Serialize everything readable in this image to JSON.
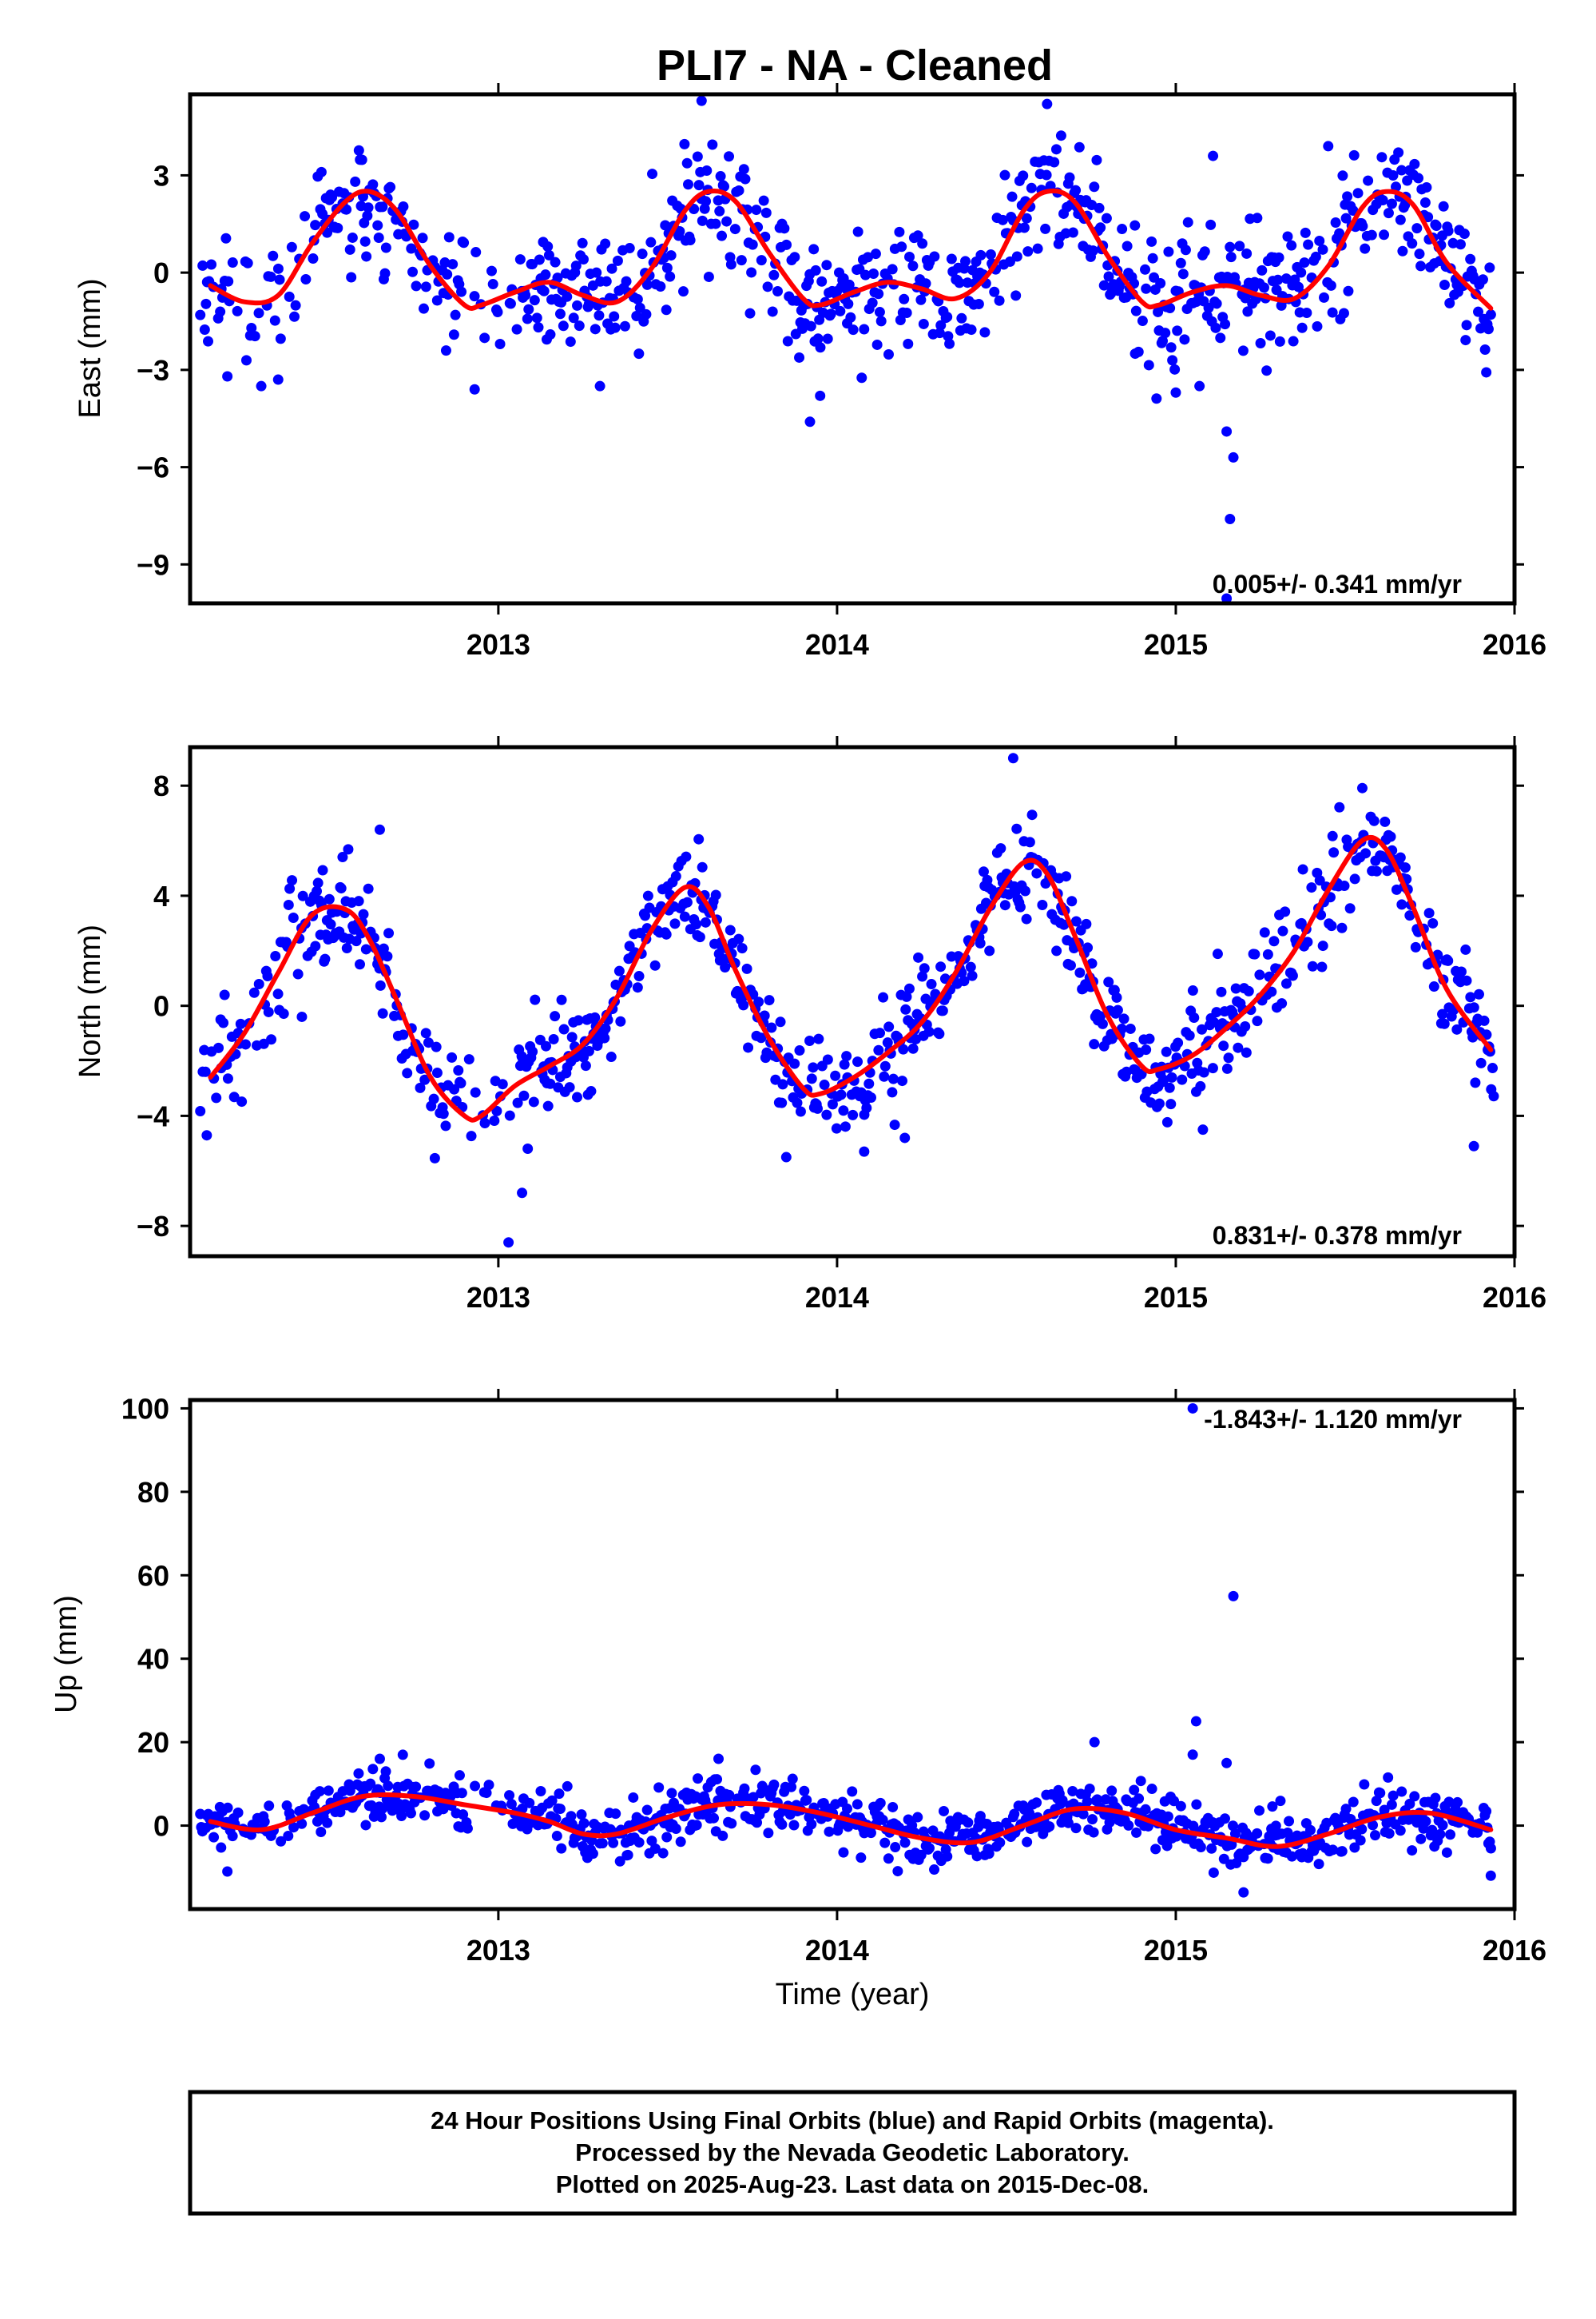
{
  "chart_data": {
    "type": "scatter",
    "title": "PLI7  - NA - Cleaned",
    "xlabel": "Time (year)",
    "xlim": [
      2012.09,
      2016.0
    ],
    "xticks": [
      "2013",
      "2014",
      "2015",
      "2016"
    ],
    "colors": {
      "points": "#0000ff",
      "model": "#ff0000"
    },
    "panels": [
      {
        "name": "east",
        "ylabel": "East (mm)",
        "ylim": [
          -10.2,
          5.5
        ],
        "yticks": [
          "3",
          "0",
          "−3",
          "−6",
          "−9"
        ],
        "rate_label": "0.005+/- 0.341 mm/yr",
        "model": {
          "x": [
            2012.15,
            2012.25,
            2012.35,
            2012.45,
            2012.55,
            2012.62,
            2012.7,
            2012.8,
            2012.9,
            2012.95,
            2013.05,
            2013.15,
            2013.25,
            2013.35,
            2013.45,
            2013.55,
            2013.62,
            2013.7,
            2013.8,
            2013.9,
            2013.95,
            2014.05,
            2014.15,
            2014.25,
            2014.35,
            2014.45,
            2014.55,
            2014.62,
            2014.7,
            2014.8,
            2014.9,
            2014.95,
            2015.05,
            2015.15,
            2015.25,
            2015.35,
            2015.45,
            2015.55,
            2015.62,
            2015.7,
            2015.8,
            2015.93
          ],
          "y": [
            -0.4,
            -0.9,
            -0.7,
            0.9,
            2.2,
            2.5,
            1.9,
            0.2,
            -1.0,
            -1.0,
            -0.6,
            -0.3,
            -0.7,
            -0.9,
            0.1,
            1.9,
            2.5,
            2.2,
            0.6,
            -0.8,
            -1.0,
            -0.6,
            -0.3,
            -0.5,
            -0.8,
            0.0,
            1.9,
            2.5,
            2.2,
            0.5,
            -0.9,
            -1.0,
            -0.6,
            -0.4,
            -0.7,
            -0.8,
            0.2,
            2.0,
            2.5,
            2.1,
            0.3,
            -1.1
          ]
        },
        "outliers": [
          [
            2013.6,
            5.3
          ],
          [
            2014.62,
            5.2
          ],
          [
            2014.88,
            -2.5
          ],
          [
            2015.15,
            -4.9
          ],
          [
            2015.17,
            -5.7
          ],
          [
            2015.16,
            -7.6
          ],
          [
            2015.15,
            -10.1
          ],
          [
            2013.92,
            -4.6
          ],
          [
            2013.95,
            -3.8
          ],
          [
            2012.93,
            -3.6
          ],
          [
            2012.2,
            -3.2
          ],
          [
            2012.3,
            -3.5
          ],
          [
            2012.35,
            -3.3
          ],
          [
            2013.3,
            -3.5
          ],
          [
            2015.07,
            -3.5
          ],
          [
            2015.0,
            -3.7
          ],
          [
            2015.11,
            3.6
          ],
          [
            2015.45,
            3.9
          ]
        ]
      },
      {
        "name": "north",
        "ylabel": "North (mm)",
        "ylim": [
          -9.1,
          9.4
        ],
        "yticks": [
          "8",
          "4",
          "0",
          "−4",
          "−8"
        ],
        "rate_label": "0.831+/- 0.378 mm/yr",
        "model": {
          "x": [
            2012.15,
            2012.25,
            2012.35,
            2012.45,
            2012.55,
            2012.62,
            2012.7,
            2012.8,
            2012.9,
            2012.95,
            2013.05,
            2013.15,
            2013.25,
            2013.35,
            2013.45,
            2013.55,
            2013.62,
            2013.7,
            2013.8,
            2013.9,
            2013.95,
            2014.05,
            2014.15,
            2014.25,
            2014.35,
            2014.45,
            2014.55,
            2014.62,
            2014.7,
            2014.8,
            2014.9,
            2014.95,
            2015.05,
            2015.15,
            2015.25,
            2015.35,
            2015.45,
            2015.55,
            2015.62,
            2015.7,
            2015.8,
            2015.93
          ],
          "y": [
            -2.6,
            -1.0,
            1.2,
            3.3,
            3.5,
            2.4,
            0.2,
            -2.6,
            -4.0,
            -4.0,
            -2.9,
            -2.2,
            -1.4,
            0.3,
            2.7,
            4.3,
            3.6,
            1.3,
            -1.2,
            -3.0,
            -3.2,
            -2.6,
            -1.7,
            -0.6,
            1.2,
            3.5,
            5.2,
            4.8,
            2.6,
            -0.4,
            -2.2,
            -2.3,
            -1.8,
            -0.8,
            0.4,
            2.0,
            4.2,
            6.0,
            5.7,
            3.6,
            0.6,
            -1.6
          ]
        },
        "outliers": [
          [
            2014.52,
            9.0
          ],
          [
            2013.03,
            -8.6
          ],
          [
            2012.65,
            6.4
          ],
          [
            2013.07,
            -6.8
          ],
          [
            2014.2,
            -4.8
          ],
          [
            2014.08,
            -5.3
          ],
          [
            2013.85,
            -5.5
          ],
          [
            2015.08,
            -4.5
          ],
          [
            2015.88,
            -5.1
          ],
          [
            2012.42,
            -0.4
          ],
          [
            2012.18,
            -0.5
          ]
        ]
      },
      {
        "name": "up",
        "ylabel": "Up (mm)",
        "ylim": [
          -20,
          102
        ],
        "yticks": [
          "100",
          "80",
          "60",
          "40",
          "20",
          "0"
        ],
        "rate_label": "-1.843+/- 1.120 mm/yr",
        "model": {
          "x": [
            2012.15,
            2012.3,
            2012.45,
            2012.6,
            2012.75,
            2012.9,
            2013.05,
            2013.15,
            2013.25,
            2013.35,
            2013.5,
            2013.65,
            2013.8,
            2013.95,
            2014.1,
            2014.25,
            2014.4,
            2014.55,
            2014.7,
            2014.85,
            2015.0,
            2015.15,
            2015.3,
            2015.45,
            2015.6,
            2015.75,
            2015.93
          ],
          "y": [
            1.0,
            -1.0,
            3.0,
            7.0,
            7.0,
            5.0,
            3.0,
            1.0,
            -2.0,
            -2.0,
            2.0,
            5.0,
            5.0,
            3.0,
            0.0,
            -3.0,
            -4.0,
            0.0,
            4.0,
            3.0,
            -1.0,
            -3.0,
            -5.0,
            -2.0,
            2.0,
            3.0,
            -1.0
          ]
        },
        "outliers": [
          [
            2015.05,
            100.0
          ],
          [
            2015.17,
            55.0
          ],
          [
            2015.06,
            25.0
          ],
          [
            2014.76,
            20.0
          ],
          [
            2015.05,
            17.0
          ],
          [
            2015.15,
            15.0
          ],
          [
            2012.2,
            -11.0
          ],
          [
            2015.2,
            -16.0
          ],
          [
            2015.93,
            -12.0
          ],
          [
            2013.65,
            16.0
          ],
          [
            2012.65,
            16.0
          ]
        ]
      }
    ]
  },
  "footer": {
    "line1": "24 Hour Positions Using Final Orbits (blue) and Rapid Orbits (magenta).",
    "line2": "Processed by the Nevada Geodetic Laboratory.",
    "line3": "Plotted on 2025-Aug-23. Last data on 2015-Dec-08."
  }
}
